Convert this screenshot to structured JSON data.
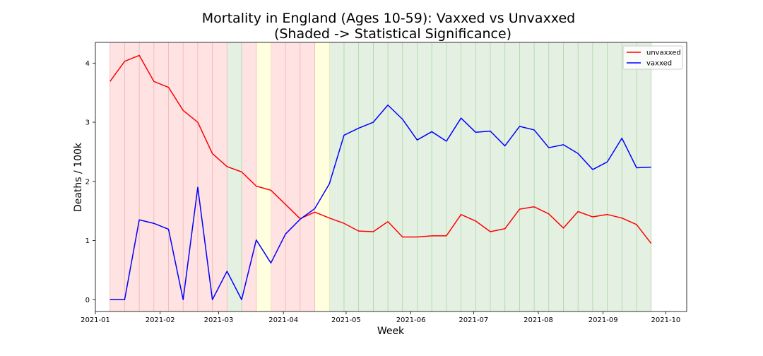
{
  "chart_data": {
    "type": "line",
    "title": "Mortality in England (Ages 10-59): Vaxxed vs Unvaxxed",
    "subtitle": "(Shaded -> Statistical Significance)",
    "xlabel": "Week",
    "ylabel": "Deaths / 100k",
    "ylim": [
      -0.2,
      4.35
    ],
    "xlim": [
      "2021-01-01",
      "2021-10-11"
    ],
    "x_ticks": [
      "2021-01",
      "2021-02",
      "2021-03",
      "2021-04",
      "2021-05",
      "2021-06",
      "2021-07",
      "2021-08",
      "2021-09",
      "2021-10"
    ],
    "y_ticks": [
      0,
      1,
      2,
      3,
      4
    ],
    "grid": false,
    "legend_position": "top-right",
    "x": [
      "2021-01-08",
      "2021-01-15",
      "2021-01-22",
      "2021-01-29",
      "2021-02-05",
      "2021-02-12",
      "2021-02-19",
      "2021-02-26",
      "2021-03-05",
      "2021-03-12",
      "2021-03-19",
      "2021-03-26",
      "2021-04-02",
      "2021-04-09",
      "2021-04-16",
      "2021-04-23",
      "2021-04-30",
      "2021-05-07",
      "2021-05-14",
      "2021-05-21",
      "2021-05-28",
      "2021-06-04",
      "2021-06-11",
      "2021-06-18",
      "2021-06-25",
      "2021-07-02",
      "2021-07-09",
      "2021-07-16",
      "2021-07-23",
      "2021-07-30",
      "2021-08-06",
      "2021-08-13",
      "2021-08-20",
      "2021-08-27",
      "2021-09-03",
      "2021-09-10",
      "2021-09-17",
      "2021-09-24"
    ],
    "series": [
      {
        "name": "unvaxxed",
        "color": "#ff0000",
        "values": [
          3.69,
          4.03,
          4.13,
          3.69,
          3.59,
          3.2,
          3.0,
          2.47,
          2.25,
          2.16,
          1.92,
          1.85,
          1.61,
          1.37,
          1.48,
          1.38,
          1.29,
          1.16,
          1.15,
          1.32,
          1.06,
          1.06,
          1.08,
          1.08,
          1.44,
          1.33,
          1.15,
          1.2,
          1.53,
          1.57,
          1.45,
          1.21,
          1.49,
          1.4,
          1.44,
          1.38,
          1.27,
          0.95
        ]
      },
      {
        "name": "vaxxed",
        "color": "#0000ff",
        "values": [
          0.0,
          0.0,
          1.35,
          1.29,
          1.19,
          0.0,
          1.9,
          0.0,
          0.48,
          0.0,
          1.01,
          0.62,
          1.11,
          1.36,
          1.54,
          1.96,
          2.78,
          2.9,
          3.0,
          3.29,
          3.05,
          2.7,
          2.84,
          2.68,
          3.07,
          2.83,
          2.85,
          2.6,
          2.93,
          2.87,
          2.57,
          2.62,
          2.47,
          2.2,
          2.33,
          2.73,
          2.23,
          2.24
        ]
      }
    ],
    "shading": {
      "colors": {
        "red": "#ffe2e2",
        "green": "#e4f1e2",
        "yellow": "#ffffe0"
      },
      "line_colors": {
        "red": "#f0b4b4",
        "green": "#a9d4a6",
        "yellow": "#e6e6b4"
      },
      "bands": [
        {
          "start": "2021-01-08",
          "end": "2021-03-05",
          "color": "red"
        },
        {
          "start": "2021-03-05",
          "end": "2021-03-12",
          "color": "green"
        },
        {
          "start": "2021-03-12",
          "end": "2021-03-19",
          "color": "red"
        },
        {
          "start": "2021-03-19",
          "end": "2021-03-26",
          "color": "yellow"
        },
        {
          "start": "2021-03-26",
          "end": "2021-04-16",
          "color": "red"
        },
        {
          "start": "2021-04-16",
          "end": "2021-04-23",
          "color": "yellow"
        },
        {
          "start": "2021-04-23",
          "end": "2021-09-24",
          "color": "green"
        }
      ]
    }
  }
}
